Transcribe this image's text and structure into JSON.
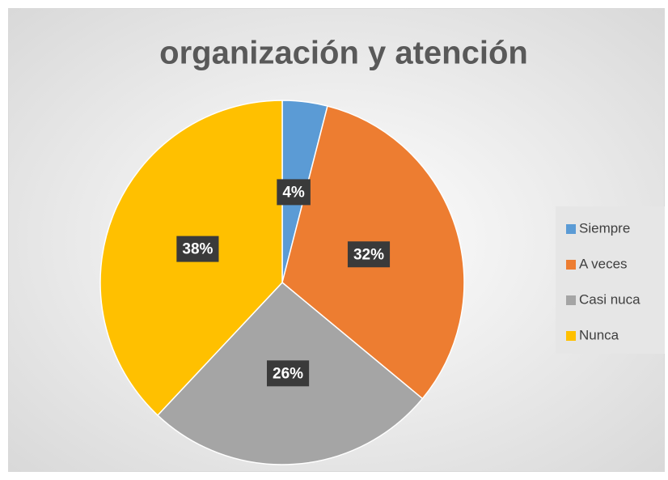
{
  "chart_data": {
    "type": "pie",
    "title": "organización y atención",
    "categories": [
      "Siempre",
      "A veces",
      "Casi nuca",
      "Nunca"
    ],
    "values": [
      4,
      32,
      26,
      38
    ],
    "value_labels": [
      "4%",
      "32%",
      "26%",
      "38%"
    ],
    "colors": [
      "#5b9bd5",
      "#ed7d31",
      "#a5a5a5",
      "#ffc000"
    ],
    "legend": "right"
  }
}
